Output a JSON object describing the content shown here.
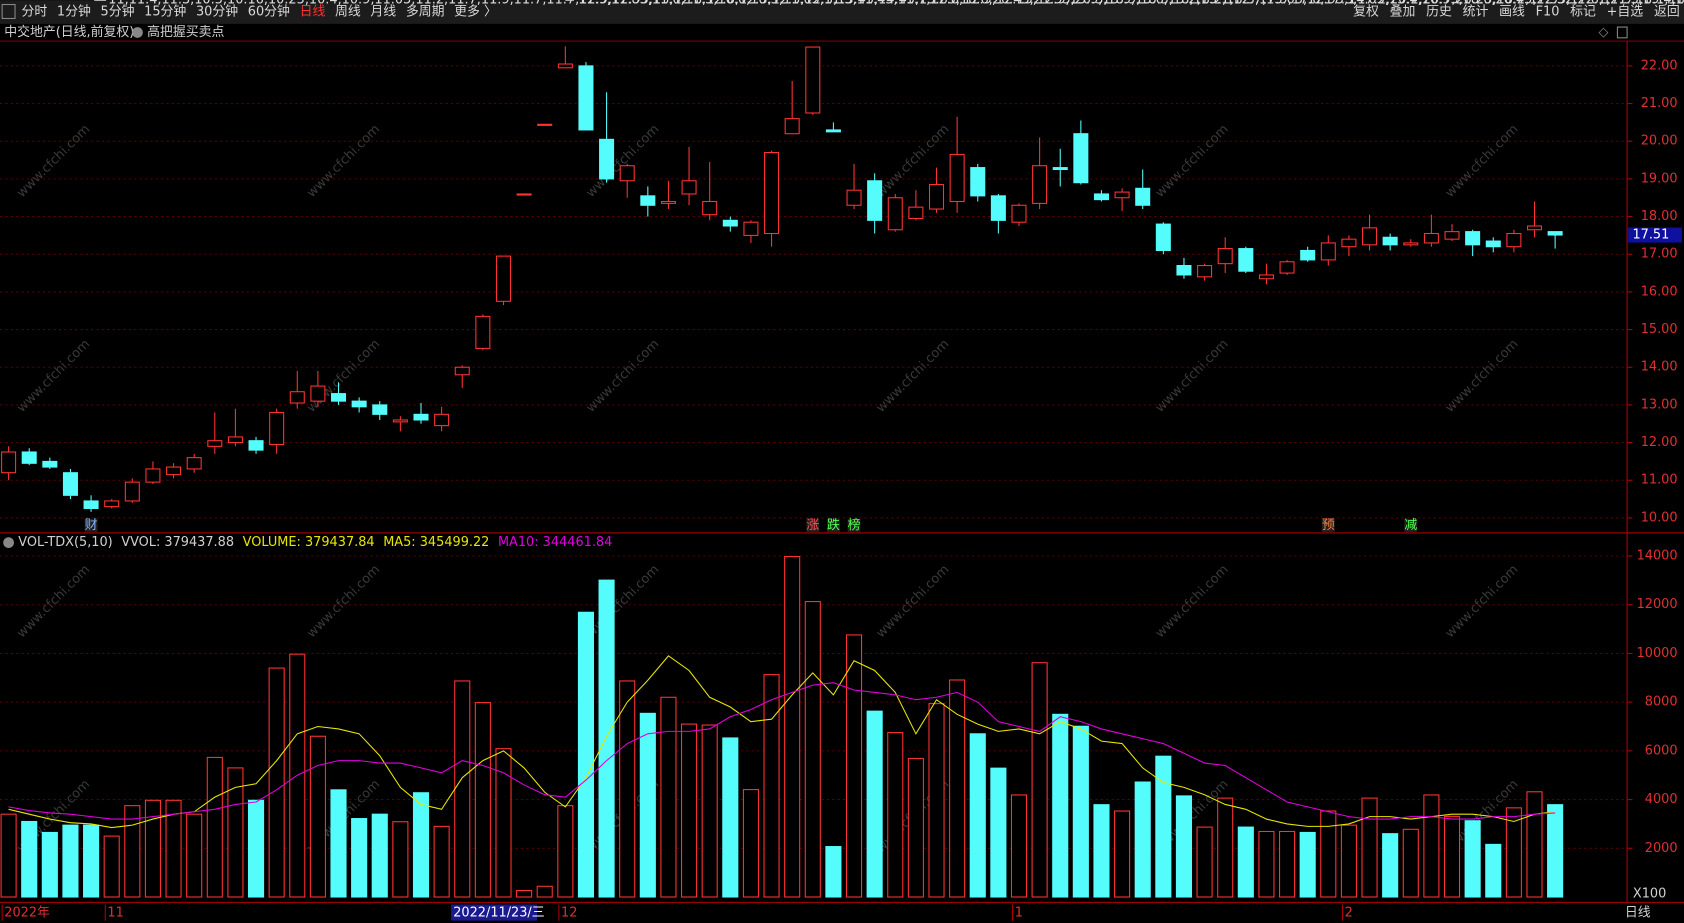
{
  "toolbar": {
    "left": [
      "分时",
      "1分钟",
      "5分钟",
      "15分钟",
      "30分钟",
      "60分钟",
      "日线",
      "周线",
      "月线",
      "多周期",
      "更多 〉"
    ],
    "active": "日线",
    "right": [
      "复权",
      "叠加",
      "历史",
      "统计",
      "画线",
      "F10",
      "标记",
      "+自选",
      "返回"
    ]
  },
  "header": {
    "title": "中交地产(日线,前复权)",
    "indicator": "高把握买卖点"
  },
  "watermark": "www.cfchi.com",
  "status": {
    "period": "日线",
    "unit": "X100",
    "cursor_date": "2022/11/23/三"
  },
  "chart_data": [
    {
      "type": "candlestick",
      "up_color": "#ff3232",
      "down_color": "#54fcfc",
      "grid": true,
      "ylim": [
        9.63,
        22.66
      ],
      "yticks": [
        {
          "value": 10,
          "label": "10.00"
        },
        {
          "value": 11,
          "label": "11.00"
        },
        {
          "value": 12,
          "label": "12.00"
        },
        {
          "value": 13,
          "label": "13.00"
        },
        {
          "value": 14,
          "label": "14.00"
        },
        {
          "value": 15,
          "label": "15.00"
        },
        {
          "value": 16,
          "label": "16.00"
        },
        {
          "value": 17,
          "label": "17.00"
        },
        {
          "value": 18,
          "label": "18.00"
        },
        {
          "value": 19,
          "label": "19.00"
        },
        {
          "value": 20,
          "label": "20.00"
        },
        {
          "value": 21,
          "label": "21.00"
        },
        {
          "value": 22,
          "label": "22.00"
        }
      ],
      "last_price": 17.51,
      "high": [
        11.9,
        11.85,
        11.6,
        11.3,
        10.6,
        10.5,
        11.05,
        11.5,
        11.45,
        11.7,
        12.8,
        12.9,
        12.15,
        12.9,
        13.9,
        13.9,
        13.6,
        13.2,
        13.1,
        12.7,
        13.05,
        12.95,
        14.05,
        15.4,
        16.95,
        18.6,
        20.45,
        22.52,
        22.1,
        21.3,
        19.4,
        18.8,
        18.95,
        19.85,
        19.45,
        18.0,
        17.9,
        19.75,
        21.6,
        22.5,
        20.5,
        19.4,
        19.15,
        18.6,
        18.7,
        19.3,
        20.65,
        19.4,
        18.6,
        18.35,
        20.1,
        19.8,
        20.55,
        18.7,
        18.75,
        19.25,
        17.85,
        16.9,
        16.75,
        17.45,
        17.2,
        16.75,
        16.85,
        17.2,
        17.5,
        17.5,
        18.05,
        17.55,
        17.4,
        18.05,
        17.8,
        17.65,
        17.45,
        17.65,
        18.4,
        17.6
      ],
      "low": [
        11.0,
        11.4,
        11.3,
        10.5,
        10.16,
        10.25,
        10.4,
        10.9,
        11.05,
        11.2,
        11.7,
        11.9,
        11.7,
        11.7,
        12.9,
        12.95,
        13.0,
        12.8,
        12.6,
        12.3,
        12.5,
        12.3,
        13.45,
        14.45,
        15.65,
        18.6,
        20.45,
        21.95,
        20.3,
        18.9,
        18.5,
        18.0,
        18.2,
        18.3,
        17.9,
        17.6,
        17.3,
        17.2,
        20.2,
        20.7,
        20.25,
        18.2,
        17.55,
        17.6,
        17.9,
        18.1,
        18.1,
        18.4,
        17.55,
        17.75,
        18.2,
        18.8,
        18.85,
        18.4,
        18.15,
        18.2,
        17.0,
        16.35,
        16.3,
        16.5,
        16.5,
        16.2,
        16.45,
        16.8,
        16.7,
        16.95,
        17.1,
        17.1,
        17.2,
        17.2,
        17.35,
        16.95,
        17.05,
        17.05,
        17.45,
        17.15
      ],
      "categories": [
        "2022年",
        null,
        null,
        null,
        null,
        "11",
        null,
        null,
        null,
        null,
        null,
        null,
        null,
        null,
        null,
        null,
        null,
        null,
        null,
        null,
        null,
        null,
        null,
        null,
        null,
        null,
        null,
        "12",
        null,
        null,
        null,
        null,
        null,
        null,
        null,
        null,
        null,
        null,
        null,
        null,
        null,
        null,
        null,
        null,
        null,
        null,
        null,
        null,
        null,
        "1",
        null,
        null,
        null,
        null,
        null,
        null,
        null,
        null,
        null,
        null,
        null,
        null,
        null,
        null,
        null,
        "2",
        null,
        null,
        null,
        null,
        null,
        null,
        null,
        null,
        null,
        null
      ],
      "events": [
        null,
        null,
        null,
        null,
        "财",
        null,
        null,
        null,
        null,
        null,
        null,
        null,
        null,
        null,
        null,
        null,
        null,
        null,
        null,
        null,
        null,
        null,
        null,
        null,
        null,
        null,
        null,
        null,
        null,
        null,
        null,
        null,
        null,
        null,
        null,
        null,
        null,
        null,
        null,
        "涨",
        "跌",
        "榜",
        null,
        null,
        null,
        null,
        null,
        null,
        null,
        null,
        null,
        null,
        null,
        null,
        null,
        null,
        null,
        null,
        null,
        null,
        null,
        null,
        null,
        null,
        "预",
        null,
        null,
        null,
        "减",
        null,
        null,
        null,
        null,
        null,
        null,
        null
      ],
      "open": [
        11.2,
        11.75,
        11.5,
        11.2,
        10.45,
        10.3,
        10.45,
        10.95,
        11.15,
        11.3,
        11.9,
        12.0,
        12.05,
        11.95,
        13.05,
        13.1,
        13.3,
        13.1,
        13.0,
        12.55,
        12.75,
        12.45,
        13.8,
        14.5,
        15.75,
        18.6,
        20.45,
        21.95,
        22.0,
        20.05,
        18.95,
        18.55,
        18.35,
        18.6,
        18.05,
        17.9,
        17.5,
        17.55,
        20.2,
        20.75,
        20.3,
        18.3,
        18.95,
        17.65,
        17.95,
        18.2,
        18.4,
        19.3,
        18.55,
        17.85,
        18.35,
        19.3,
        20.2,
        18.6,
        18.5,
        18.75,
        17.8,
        16.7,
        16.4,
        16.75,
        17.15,
        16.35,
        16.5,
        17.1,
        16.85,
        17.2,
        17.25,
        17.45,
        17.25,
        17.3,
        17.4,
        17.6,
        17.35,
        17.2,
        17.65,
        17.6
      ],
      "close": [
        11.75,
        11.45,
        11.35,
        10.6,
        10.25,
        10.45,
        10.95,
        11.3,
        11.35,
        11.6,
        12.05,
        12.15,
        11.8,
        12.8,
        13.35,
        13.5,
        13.1,
        12.95,
        12.75,
        12.6,
        12.6,
        12.75,
        14.0,
        15.35,
        16.95,
        18.6,
        20.45,
        22.05,
        20.3,
        19.0,
        19.35,
        18.3,
        18.4,
        18.95,
        18.4,
        17.75,
        17.85,
        19.7,
        20.6,
        22.5,
        20.25,
        18.7,
        17.9,
        18.5,
        18.25,
        18.85,
        19.65,
        18.55,
        17.9,
        18.3,
        19.35,
        19.25,
        18.9,
        18.45,
        18.65,
        18.3,
        17.1,
        16.45,
        16.7,
        17.15,
        16.55,
        16.45,
        16.8,
        16.85,
        17.3,
        17.4,
        17.7,
        17.25,
        17.3,
        17.55,
        17.6,
        17.25,
        17.2,
        17.55,
        17.75,
        17.51
      ]
    },
    {
      "type": "bar",
      "grid": true,
      "ylim": [
        0,
        14860
      ],
      "yticks": [
        2000,
        4000,
        6000,
        8000,
        10000,
        12000,
        14000
      ],
      "legend": [
        "VOL-TDX(5,10)",
        "VVOL: 379437.88",
        "VOLUME: 379437.84",
        "MA5: 345499.22",
        "MA10: 344461.84"
      ],
      "legend_colors": [
        "#d0d0d0",
        "#d0d0d0",
        "#e6e600",
        "#e6e600",
        "#e000e0"
      ],
      "ma5_color": "#e6e600",
      "ma10_color": "#e000e0",
      "values": [
        3400,
        3100,
        2650,
        2950,
        2950,
        2500,
        3750,
        3970,
        3970,
        3400,
        5730,
        5300,
        3970,
        9400,
        9970,
        6600,
        4400,
        3220,
        3400,
        3090,
        4280,
        2900,
        8870,
        7980,
        6090,
        265,
        440,
        3750,
        11690,
        13010,
        8870,
        7540,
        8200,
        7100,
        7060,
        6530,
        4410,
        9130,
        13980,
        12130,
        2070,
        10760,
        7630,
        6750,
        5690,
        7940,
        8910,
        6700,
        5290,
        4190,
        9620,
        7500,
        7010,
        3790,
        3530,
        4720,
        5780,
        4150,
        2870,
        4060,
        2870,
        2690,
        2690,
        2650,
        3530,
        2950,
        4060,
        2600,
        2780,
        4190,
        3310,
        3130,
        2160,
        3660,
        4320,
        3790
      ],
      "ma5": [
        3600,
        3400,
        3200,
        3050,
        3000,
        2850,
        2950,
        3200,
        3400,
        3500,
        4100,
        4500,
        4650,
        5600,
        6700,
        7000,
        6900,
        6700,
        5800,
        4500,
        3800,
        3600,
        4900,
        5600,
        6000,
        5300,
        4300,
        3700,
        4900,
        6600,
        8000,
        8900,
        9900,
        9300,
        8200,
        7800,
        7200,
        7300,
        8300,
        9200,
        8300,
        9700,
        9300,
        8400,
        6700,
        8100,
        7500,
        7100,
        6800,
        6900,
        6700,
        7200,
        6900,
        6400,
        6300,
        5300,
        4700,
        4500,
        4200,
        3800,
        3600,
        3200,
        3000,
        2900,
        2900,
        3000,
        3300,
        3300,
        3200,
        3300,
        3400,
        3400,
        3300,
        3100,
        3400,
        3500
      ],
      "ma10": [
        3700,
        3550,
        3450,
        3400,
        3300,
        3200,
        3200,
        3300,
        3400,
        3500,
        3600,
        3800,
        3900,
        4400,
        5000,
        5400,
        5600,
        5600,
        5500,
        5500,
        5300,
        5100,
        5600,
        5400,
        5100,
        4600,
        4200,
        4100,
        4800,
        5600,
        6300,
        6700,
        6800,
        6800,
        6900,
        7400,
        7700,
        8100,
        8400,
        8700,
        8800,
        8500,
        8400,
        8300,
        8100,
        8200,
        8400,
        8000,
        7200,
        7000,
        6800,
        7400,
        7200,
        6900,
        6700,
        6500,
        6300,
        5900,
        5500,
        5400,
        4900,
        4400,
        3900,
        3700,
        3500,
        3300,
        3200,
        3200,
        3300,
        3300,
        3200,
        3200,
        3300,
        3300,
        3400,
        3450
      ]
    }
  ]
}
